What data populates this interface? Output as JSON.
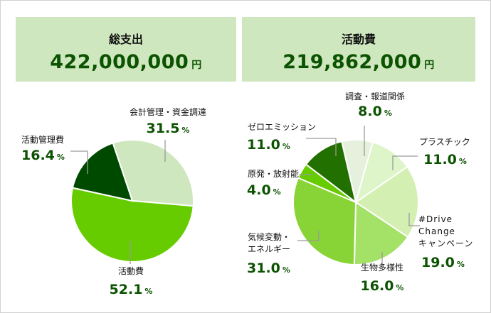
{
  "panels": [
    {
      "title": "総支出",
      "amount": "422,000,000",
      "unit": "円"
    },
    {
      "title": "活動費",
      "amount": "219,862,000",
      "unit": "円"
    }
  ],
  "percent_sign": "%",
  "chart_data": [
    {
      "type": "pie",
      "start_angle_deg": -18.6,
      "direction": "clockwise",
      "slices": [
        {
          "label": "会計管理・資金調達",
          "value": 31.5,
          "display": "31.5",
          "color": "#cfe7bf"
        },
        {
          "label": "活動費",
          "value": 52.1,
          "display": "52.1",
          "color": "#66cc00"
        },
        {
          "label": "活動管理費",
          "value": 16.4,
          "display": "16.4",
          "color": "#004a00"
        }
      ]
    },
    {
      "type": "pie",
      "start_angle_deg": -13,
      "direction": "clockwise",
      "slices": [
        {
          "label": "調査・報道関係",
          "value": 8.0,
          "display": "8.0",
          "color": "#e5f1dc"
        },
        {
          "label": "プラスチック",
          "value": 11.0,
          "display": "11.0",
          "color": "#def5ca"
        },
        {
          "label": "#Drive Change キャンペーン",
          "lines": [
            "#Drive",
            "Change",
            "キャンペーン"
          ],
          "value": 19.0,
          "display": "19.0",
          "color": "#d3efb1"
        },
        {
          "label": "生物多様性",
          "value": 16.0,
          "display": "16.0",
          "color": "#a4e167"
        },
        {
          "label": "気候変動・エネルギー",
          "lines": [
            "気候変動・",
            "エネルギー"
          ],
          "value": 31.0,
          "display": "31.0",
          "color": "#88d436"
        },
        {
          "label": "原発・放射能",
          "value": 4.0,
          "display": "4.0",
          "color": "#66cc00"
        },
        {
          "label": "ゼロエミッション",
          "value": 11.0,
          "display": "11.0",
          "color": "#227000"
        }
      ]
    }
  ]
}
